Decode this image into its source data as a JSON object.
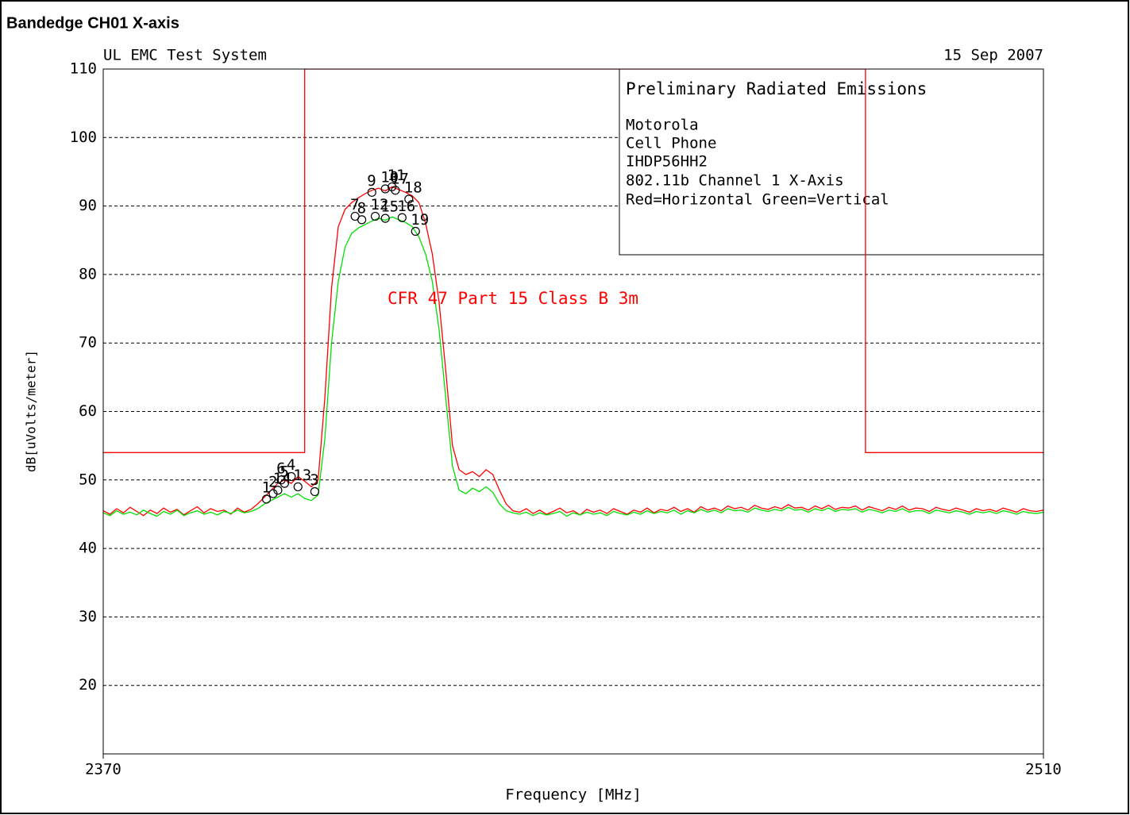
{
  "chart_data": {
    "type": "line",
    "title": "Bandedge CH01 X-axis",
    "header_left": "UL EMC Test System",
    "header_right": "15 Sep 2007",
    "xlabel": "Frequency [MHz]",
    "ylabel": "dB[uVolts/meter]",
    "xlim": [
      2370,
      2510
    ],
    "xticks": [
      2370,
      2510
    ],
    "ylim": [
      10,
      110
    ],
    "yticks": [
      20,
      30,
      40,
      50,
      60,
      70,
      80,
      90,
      100,
      110
    ],
    "grid": true,
    "notes": [
      "Preliminary Radiated Emissions",
      "Motorola",
      "Cell Phone",
      "IHDP56HH2",
      "802.11b Channel 1 X-Axis",
      "Red=Horizontal  Green=Vertical"
    ],
    "x": [
      2370,
      2371,
      2372,
      2373,
      2374,
      2375,
      2376,
      2377,
      2378,
      2379,
      2380,
      2381,
      2382,
      2383,
      2384,
      2385,
      2386,
      2387,
      2388,
      2389,
      2390,
      2391,
      2392,
      2393,
      2394,
      2395,
      2396,
      2397,
      2398,
      2399,
      2400,
      2401,
      2402,
      2403,
      2404,
      2405,
      2406,
      2407,
      2408,
      2409,
      2410,
      2411,
      2412,
      2413,
      2414,
      2415,
      2416,
      2417,
      2418,
      2419,
      2420,
      2421,
      2422,
      2423,
      2424,
      2425,
      2426,
      2427,
      2428,
      2429,
      2430,
      2431,
      2432,
      2433,
      2434,
      2435,
      2436,
      2437,
      2438,
      2439,
      2440,
      2441,
      2442,
      2443,
      2444,
      2445,
      2446,
      2447,
      2448,
      2449,
      2450,
      2451,
      2452,
      2453,
      2454,
      2455,
      2456,
      2457,
      2458,
      2459,
      2460,
      2461,
      2462,
      2463,
      2464,
      2465,
      2466,
      2467,
      2468,
      2469,
      2470,
      2471,
      2472,
      2473,
      2474,
      2475,
      2476,
      2477,
      2478,
      2479,
      2480,
      2481,
      2482,
      2483,
      2484,
      2485,
      2486,
      2487,
      2488,
      2489,
      2490,
      2491,
      2492,
      2493,
      2494,
      2495,
      2496,
      2497,
      2498,
      2499,
      2500,
      2501,
      2502,
      2503,
      2504,
      2505,
      2506,
      2507,
      2508,
      2509,
      2510
    ],
    "series": [
      {
        "color": "#ff0000",
        "values": [
          45.5,
          45,
          45.8,
          45.2,
          46,
          45.4,
          44.8,
          45.6,
          45.1,
          45.9,
          45.3,
          45.7,
          44.9,
          45.5,
          46.1,
          45.2,
          45.8,
          45.4,
          45.6,
          45,
          45.9,
          45.3,
          45.7,
          46.5,
          47.5,
          48.5,
          49.5,
          50,
          49.5,
          50.5,
          49.8,
          49,
          50,
          62,
          78,
          87,
          89.5,
          90.5,
          91.2,
          91.8,
          92.3,
          92.6,
          92.2,
          92.8,
          92.4,
          92,
          91.5,
          90.5,
          87.5,
          83,
          76,
          66,
          55,
          51.5,
          50.8,
          51.2,
          50.5,
          51.5,
          50.8,
          48.5,
          46.5,
          45.5,
          45.3,
          45.8,
          45.1,
          45.6,
          45.0,
          45.4,
          45.9,
          45.2,
          45.5,
          44.9,
          45.7,
          45.3,
          45.6,
          45.1,
          45.8,
          45.4,
          45.0,
          45.6,
          45.3,
          45.9,
          45.2,
          45.7,
          45.5,
          46.0,
          45.4,
          45.8,
          45.3,
          46.1,
          45.6,
          45.9,
          45.5,
          46.2,
          45.8,
          46.0,
          45.6,
          46.3,
          45.9,
          45.7,
          46.1,
          45.8,
          46.4,
          45.9,
          46.0,
          45.6,
          46.2,
          45.8,
          46.3,
          45.7,
          46.0,
          45.9,
          46.2,
          45.6,
          46.1,
          45.8,
          45.5,
          46.0,
          45.7,
          46.2,
          45.6,
          45.9,
          45.8,
          45.4,
          46.0,
          45.7,
          45.5,
          45.9,
          45.6,
          45.3,
          45.8,
          45.5,
          45.7,
          45.4,
          45.9,
          45.6,
          45.3,
          45.8,
          45.5,
          45.4,
          45.6
        ]
      },
      {
        "color": "#00e000",
        "values": [
          45.2,
          44.8,
          45.5,
          45,
          45.3,
          44.9,
          45.6,
          45.1,
          44.7,
          45.4,
          45,
          45.6,
          44.8,
          45.2,
          45.5,
          45,
          45.3,
          44.9,
          45.4,
          45.1,
          45.6,
          45.2,
          45.4,
          45.8,
          46.5,
          47,
          47.5,
          48,
          47.5,
          48,
          47.3,
          47,
          47.8,
          56,
          70,
          79,
          84,
          86,
          86.8,
          87.3,
          87.8,
          88.2,
          87.9,
          88.4,
          88,
          87.6,
          87,
          85.5,
          83,
          79,
          72,
          62,
          52,
          48.5,
          48,
          48.8,
          48.3,
          49,
          48.2,
          46.5,
          45.5,
          45.2,
          45.0,
          45.3,
          44.8,
          45.2,
          44.9,
          45.1,
          45.4,
          44.7,
          45.2,
          44.9,
          45.3,
          45.0,
          45.2,
          44.8,
          45.4,
          45.1,
          44.9,
          45.3,
          45.0,
          45.5,
          45.1,
          45.4,
          45.2,
          45.6,
          45.0,
          45.5,
          45.2,
          45.7,
          45.3,
          45.6,
          45.2,
          45.8,
          45.5,
          45.6,
          45.3,
          45.9,
          45.6,
          45.4,
          45.7,
          45.5,
          46.0,
          45.6,
          45.7,
          45.3,
          45.8,
          45.5,
          45.9,
          45.4,
          45.7,
          45.6,
          45.8,
          45.3,
          45.7,
          45.5,
          45.2,
          45.6,
          45.4,
          45.8,
          45.3,
          45.5,
          45.5,
          45.1,
          45.6,
          45.4,
          45.2,
          45.5,
          45.3,
          45.0,
          45.4,
          45.2,
          45.4,
          45.1,
          45.5,
          45.3,
          45.0,
          45.4,
          45.2,
          45.1,
          45.3
        ]
      }
    ],
    "limit": {
      "name": "CFR 47 Part 15  Class B 3m",
      "color": "#ff0000",
      "x": [
        2370,
        2400,
        2400,
        2483.5,
        2483.5,
        2510
      ],
      "values": [
        54,
        54,
        110,
        110,
        54,
        54
      ]
    },
    "markers": [
      {
        "label": "1",
        "x": 2394.3,
        "y": 47.2
      },
      {
        "label": "2",
        "x": 2395.3,
        "y": 48.0
      },
      {
        "label": "3",
        "x": 2401.5,
        "y": 48.3
      },
      {
        "label": "4",
        "x": 2398,
        "y": 50.5
      },
      {
        "label": "5",
        "x": 2397,
        "y": 49.5
      },
      {
        "label": "6",
        "x": 2396.5,
        "y": 50
      },
      {
        "label": "7",
        "x": 2407.5,
        "y": 88.5
      },
      {
        "label": "8",
        "x": 2408.5,
        "y": 88
      },
      {
        "label": "9",
        "x": 2410,
        "y": 92
      },
      {
        "label": "10",
        "x": 2412,
        "y": 92.5
      },
      {
        "label": "11",
        "x": 2413,
        "y": 92.8
      },
      {
        "label": "12",
        "x": 2410.5,
        "y": 88.5
      },
      {
        "label": "13",
        "x": 2399,
        "y": 49
      },
      {
        "label": "14",
        "x": 2396,
        "y": 48.5
      },
      {
        "label": "15",
        "x": 2412,
        "y": 88.2
      },
      {
        "label": "16",
        "x": 2414.5,
        "y": 88.3
      },
      {
        "label": "17",
        "x": 2413.5,
        "y": 92.3
      },
      {
        "label": "18",
        "x": 2415.5,
        "y": 91
      },
      {
        "label": "19",
        "x": 2416.5,
        "y": 86.3
      }
    ]
  }
}
